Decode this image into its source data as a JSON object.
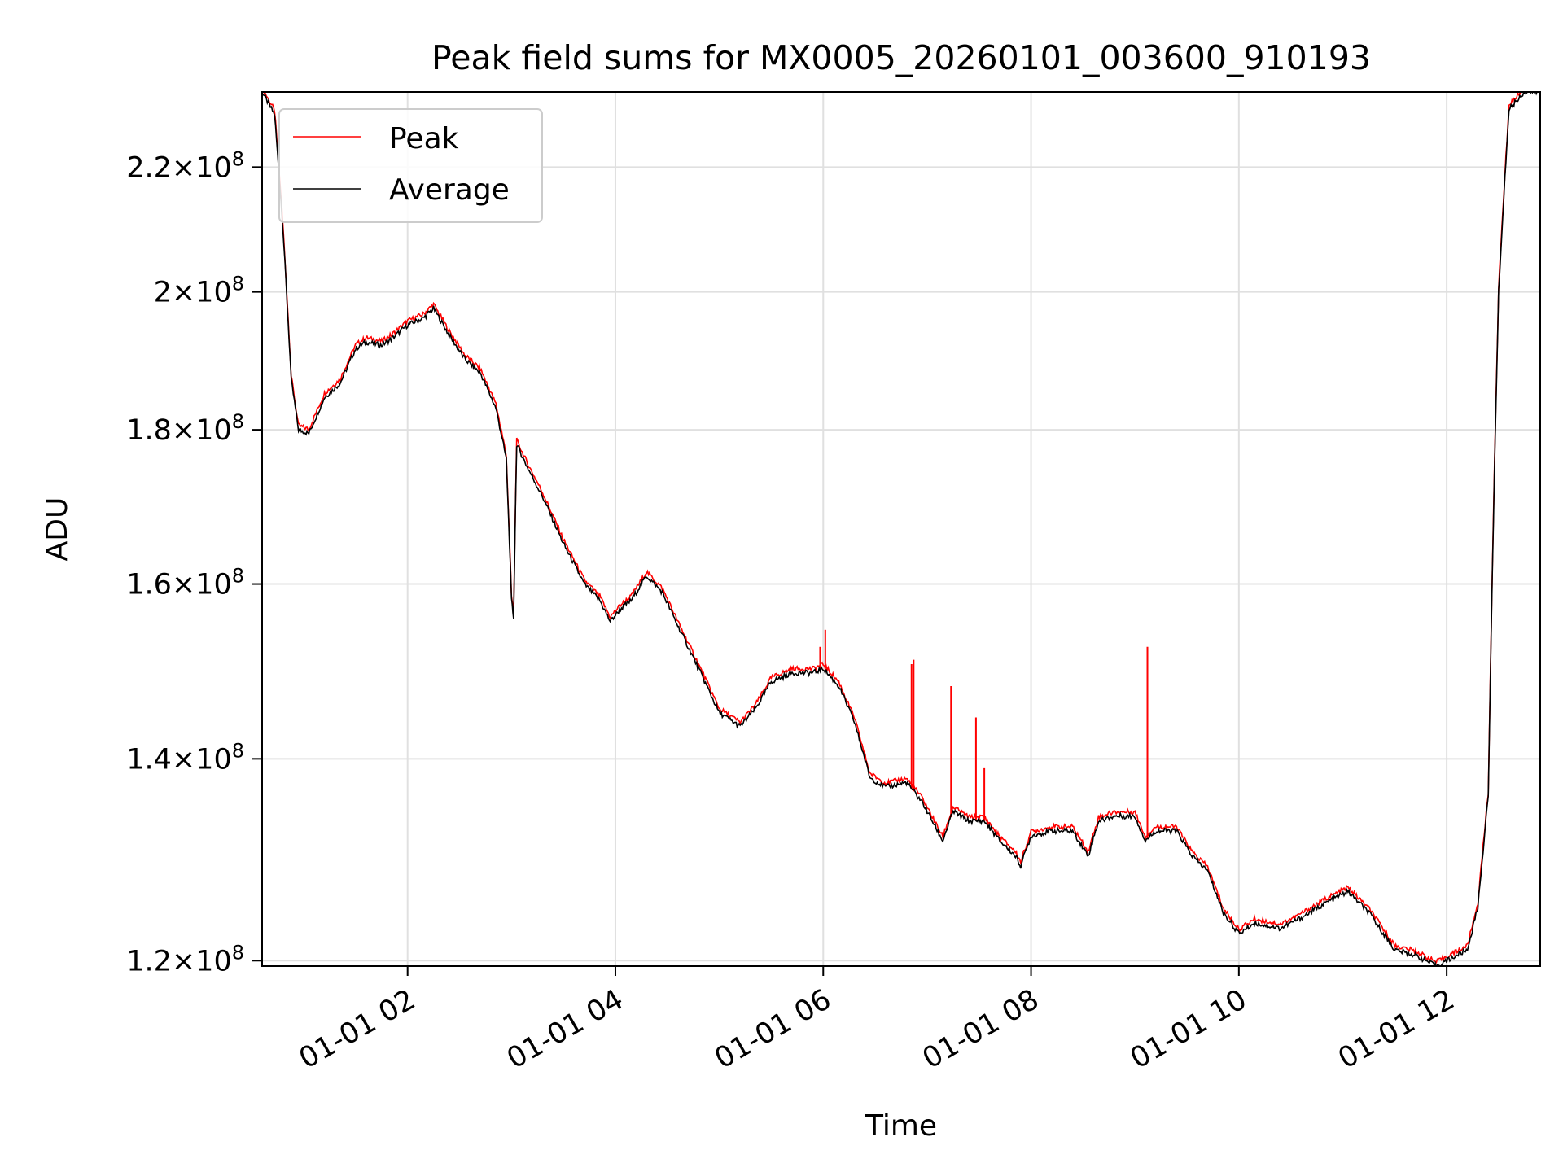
{
  "chart_data": {
    "type": "line",
    "title": "Peak field sums for MX0005_20260101_003600_910193",
    "xlabel": "Time",
    "ylabel": "ADU",
    "yscale": "log",
    "x_unit": "hours (2026-01-01)",
    "xlim": [
      0.6,
      12.9
    ],
    "ylim": [
      119500000.0,
      233000000.0
    ],
    "grid": true,
    "legend_position": "upper-left",
    "x_ticks": [
      {
        "value": 2,
        "label": "01-01 02"
      },
      {
        "value": 4,
        "label": "01-01 04"
      },
      {
        "value": 6,
        "label": "01-01 06"
      },
      {
        "value": 8,
        "label": "01-01 08"
      },
      {
        "value": 10,
        "label": "01-01 10"
      },
      {
        "value": 12,
        "label": "01-01 12"
      }
    ],
    "y_ticks": [
      {
        "value": 120000000.0,
        "mantissa": "1.2",
        "exponent": "8"
      },
      {
        "value": 140000000.0,
        "mantissa": "1.4",
        "exponent": "8"
      },
      {
        "value": 160000000.0,
        "mantissa": "1.6",
        "exponent": "8"
      },
      {
        "value": 180000000.0,
        "mantissa": "1.8",
        "exponent": "8"
      },
      {
        "value": 200000000.0,
        "mantissa": "2",
        "exponent": "8"
      },
      {
        "value": 220000000.0,
        "mantissa": "2.2",
        "exponent": "8"
      }
    ],
    "series": [
      {
        "name": "Average",
        "color": "#000000",
        "x": [
          0.6,
          0.72,
          0.8,
          0.88,
          0.95,
          1.05,
          1.2,
          1.35,
          1.5,
          1.6,
          1.75,
          1.85,
          2.0,
          2.15,
          2.25,
          2.4,
          2.55,
          2.7,
          2.85,
          2.95,
          3.0,
          3.02,
          3.05,
          3.15,
          3.3,
          3.5,
          3.7,
          3.85,
          3.95,
          4.05,
          4.15,
          4.3,
          4.45,
          4.6,
          4.8,
          5.0,
          5.2,
          5.35,
          5.5,
          5.7,
          5.9,
          6.0,
          6.15,
          6.3,
          6.45,
          6.6,
          6.8,
          6.95,
          7.05,
          7.15,
          7.25,
          7.4,
          7.55,
          7.7,
          7.85,
          7.9,
          8.0,
          8.2,
          8.4,
          8.55,
          8.65,
          8.8,
          9.0,
          9.1,
          9.2,
          9.4,
          9.55,
          9.7,
          9.85,
          10.0,
          10.15,
          10.4,
          10.6,
          10.85,
          11.05,
          11.25,
          11.5,
          11.7,
          11.9,
          12.0,
          12.1,
          12.2,
          12.3,
          12.4,
          12.5,
          12.6,
          12.75,
          12.9
        ],
        "y": [
          233000000.0,
          229000000.0,
          210000000.0,
          187000000.0,
          180000000.0,
          179500000.0,
          184500000.0,
          186500000.0,
          191500000.0,
          192500000.0,
          192000000.0,
          193000000.0,
          195000000.0,
          196000000.0,
          197500000.0,
          193500000.0,
          190000000.0,
          188000000.0,
          183000000.0,
          176000000.0,
          158000000.0,
          156000000.0,
          178000000.0,
          175000000.0,
          171000000.0,
          165000000.0,
          160000000.0,
          158000000.0,
          155500000.0,
          157000000.0,
          158000000.0,
          161000000.0,
          159000000.0,
          155000000.0,
          150000000.0,
          145000000.0,
          143500000.0,
          145500000.0,
          148500000.0,
          149500000.0,
          149500000.0,
          150000000.0,
          148000000.0,
          144000000.0,
          138000000.0,
          137000000.0,
          137500000.0,
          135500000.0,
          133500000.0,
          131500000.0,
          134500000.0,
          133500000.0,
          133500000.0,
          131500000.0,
          130000000.0,
          129000000.0,
          132000000.0,
          132500000.0,
          132500000.0,
          130000000.0,
          133500000.0,
          134000000.0,
          134000000.0,
          131500000.0,
          132500000.0,
          132500000.0,
          130000000.0,
          128500000.0,
          124500000.0,
          122500000.0,
          123500000.0,
          123000000.0,
          124000000.0,
          125500000.0,
          126500000.0,
          124500000.0,
          121000000.0,
          120500000.0,
          119500000.0,
          120000000.0,
          120500000.0,
          121000000.0,
          125000000.0,
          136000000.0,
          200000000.0,
          230000000.0,
          233000000.0,
          233000000.0
        ]
      },
      {
        "name": "Peak",
        "color": "#ff0000",
        "spikes": [
          {
            "x": 5.97,
            "y": 152500000.0
          },
          {
            "x": 6.02,
            "y": 154500000.0
          },
          {
            "x": 6.85,
            "y": 150500000.0
          },
          {
            "x": 6.87,
            "y": 151000000.0
          },
          {
            "x": 7.23,
            "y": 148000000.0
          },
          {
            "x": 7.47,
            "y": 144500000.0
          },
          {
            "x": 7.55,
            "y": 139000000.0
          },
          {
            "x": 9.12,
            "y": 152500000.0
          }
        ]
      }
    ]
  }
}
